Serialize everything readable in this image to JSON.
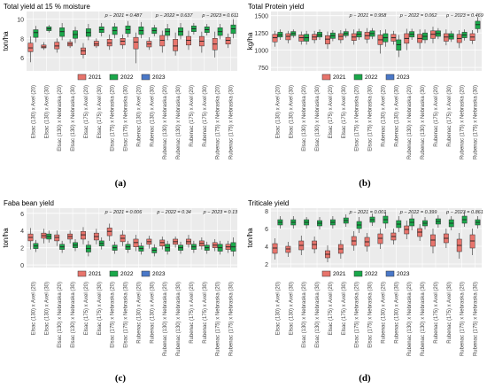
{
  "colors": {
    "2021": "#e8746c",
    "2022": "#1aa84a",
    "2023": "#4a78c8",
    "panel_bg": "#ebebeb",
    "grid": "#ffffff"
  },
  "legend": {
    "years": [
      "2021",
      "2022",
      "2023"
    ]
  },
  "categories": [
    "Elsac (130) x Axel (20)",
    "Elsac (130) x Axel (30)",
    "Elsac (130) x Nebraska (20)",
    "Elsac (130) x Nebraska (30)",
    "Elsac (175) x Axel (20)",
    "Elsac (175) x Axel (30)",
    "Elsac (175) x Nebraska (20)",
    "Elsac (175) x Nebraska (30)",
    "Rubenac (130) x Axel (20)",
    "Rubenac (130) x Axel (30)",
    "Rubenac (130) x Nebraska (20)",
    "Rubenac (130) x Nebraska (30)",
    "Rubenac (175) x Axel (20)",
    "Rubenac (175) x Axel (30)",
    "Rubenac (175) x Nebraska (20)",
    "Rubenac (175) x Nebraska (30)"
  ],
  "chart_data": [
    {
      "type": "box",
      "caption": "(a)",
      "title": "Total yield at 15 % moisture",
      "ylabel": "ton/ha",
      "ylim": [
        4.6,
        10.8
      ],
      "yticks": [
        6,
        8,
        10
      ],
      "pvalues": [
        "p − 2021 = 0.487",
        "p − 2022 = 0.637",
        "p − 2023 = 0.611"
      ],
      "series": [
        {
          "name": "2021",
          "values": [
            [
              5.5,
              6.6,
              7.0,
              7.5,
              8.2
            ],
            [
              6.8,
              7.0,
              7.1,
              7.3,
              7.6
            ],
            [
              6.5,
              6.9,
              7.2,
              7.6,
              8.0
            ],
            [
              7.0,
              7.2,
              7.4,
              7.6,
              7.9
            ],
            [
              5.9,
              6.3,
              6.7,
              7.0,
              7.5
            ],
            [
              7.0,
              7.2,
              7.4,
              7.7,
              8.0
            ],
            [
              6.8,
              7.2,
              7.5,
              7.9,
              8.4
            ],
            [
              6.9,
              7.3,
              7.7,
              8.0,
              8.4
            ],
            [
              5.4,
              6.9,
              7.6,
              8.1,
              8.6
            ],
            [
              6.8,
              7.1,
              7.4,
              7.7,
              8.1
            ],
            [
              6.5,
              7.2,
              7.8,
              8.3,
              8.8
            ],
            [
              6.2,
              6.7,
              7.2,
              7.9,
              8.6
            ],
            [
              6.8,
              7.3,
              7.8,
              8.2,
              8.8
            ],
            [
              6.5,
              7.2,
              7.7,
              8.2,
              8.7
            ],
            [
              6.0,
              6.8,
              7.4,
              8.0,
              8.7
            ],
            [
              7.0,
              7.4,
              7.8,
              8.1,
              8.5
            ]
          ]
        },
        {
          "name": "2022",
          "values": [
            [
              7.6,
              8.1,
              8.6,
              8.9,
              9.3
            ],
            [
              8.6,
              8.8,
              9.0,
              9.2,
              9.4
            ],
            [
              7.8,
              8.2,
              8.7,
              9.1,
              9.6
            ],
            [
              7.5,
              8.0,
              8.4,
              8.8,
              9.2
            ],
            [
              7.8,
              8.2,
              8.6,
              9.0,
              9.5
            ],
            [
              8.2,
              8.6,
              8.9,
              9.2,
              9.6
            ],
            [
              8.0,
              8.4,
              8.8,
              9.2,
              9.6
            ],
            [
              8.1,
              8.5,
              8.9,
              9.3,
              9.8
            ],
            [
              8.0,
              8.4,
              8.8,
              9.2,
              9.7
            ],
            [
              8.2,
              8.5,
              8.8,
              9.1,
              9.4
            ],
            [
              7.8,
              8.3,
              8.7,
              9.0,
              9.5
            ],
            [
              7.9,
              8.3,
              8.7,
              9.1,
              9.6
            ],
            [
              8.4,
              8.7,
              9.0,
              9.3,
              9.6
            ],
            [
              8.3,
              8.6,
              8.9,
              9.2,
              9.5
            ],
            [
              7.9,
              8.3,
              8.7,
              9.1,
              9.5
            ],
            [
              8.0,
              8.5,
              9.0,
              9.4,
              10.0
            ]
          ]
        }
      ]
    },
    {
      "type": "box",
      "caption": "(b)",
      "title": "Total Protein yield",
      "ylabel": "kg/ha",
      "ylim": [
        700,
        1560
      ],
      "yticks": [
        750,
        1000,
        1250,
        1500
      ],
      "pvalues": [
        "p − 2021 = 0.958",
        "p − 2022 = 0.062",
        "p − 2023 = 0.469"
      ],
      "series": [
        {
          "name": "2021",
          "values": [
            [
              1050,
              1120,
              1180,
              1230,
              1280
            ],
            [
              1100,
              1150,
              1200,
              1240,
              1280
            ],
            [
              1080,
              1130,
              1180,
              1220,
              1270
            ],
            [
              1100,
              1150,
              1190,
              1230,
              1280
            ],
            [
              1020,
              1090,
              1160,
              1210,
              1270
            ],
            [
              1100,
              1150,
              1200,
              1240,
              1290
            ],
            [
              1080,
              1140,
              1190,
              1240,
              1300
            ],
            [
              1100,
              1160,
              1210,
              1260,
              1320
            ],
            [
              950,
              1080,
              1150,
              1220,
              1290
            ],
            [
              1080,
              1130,
              1180,
              1230,
              1280
            ],
            [
              1000,
              1100,
              1170,
              1240,
              1310
            ],
            [
              1020,
              1110,
              1170,
              1230,
              1300
            ],
            [
              1100,
              1170,
              1230,
              1280,
              1340
            ],
            [
              1070,
              1130,
              1190,
              1240,
              1300
            ],
            [
              1030,
              1110,
              1170,
              1230,
              1290
            ],
            [
              1090,
              1140,
              1190,
              1240,
              1290
            ]
          ]
        },
        {
          "name": "2022",
          "values": [
            [
              1150,
              1190,
              1220,
              1260,
              1300
            ],
            [
              1180,
              1210,
              1240,
              1270,
              1300
            ],
            [
              1080,
              1130,
              1180,
              1230,
              1280
            ],
            [
              1150,
              1190,
              1220,
              1260,
              1300
            ],
            [
              1130,
              1170,
              1210,
              1250,
              1290
            ],
            [
              1180,
              1210,
              1240,
              1270,
              1310
            ],
            [
              1150,
              1190,
              1230,
              1270,
              1310
            ],
            [
              1160,
              1200,
              1240,
              1280,
              1320
            ],
            [
              1050,
              1120,
              1180,
              1240,
              1300
            ],
            [
              900,
              1000,
              1080,
              1150,
              1220
            ],
            [
              1150,
              1190,
              1230,
              1270,
              1310
            ],
            [
              1100,
              1150,
              1200,
              1250,
              1300
            ],
            [
              1160,
              1200,
              1240,
              1280,
              1320
            ],
            [
              1120,
              1160,
              1200,
              1240,
              1280
            ],
            [
              1140,
              1180,
              1220,
              1260,
              1300
            ],
            [
              1250,
              1310,
              1370,
              1420,
              1480
            ]
          ]
        }
      ]
    },
    {
      "type": "box",
      "caption": "(c)",
      "title": "Faba bean yield",
      "ylabel": "ton/ha",
      "ylim": [
        -0.3,
        6.6
      ],
      "yticks": [
        0,
        2,
        4,
        6
      ],
      "pvalues": [
        "p − 2021 = 0.006",
        "p − 2022 = 0.34",
        "p − 2023 = 0.13"
      ],
      "series": [
        {
          "name": "2021",
          "values": [
            [
              1.8,
              2.8,
              3.2,
              3.6,
              4.3
            ],
            [
              2.5,
              3.1,
              3.4,
              3.7,
              4.2
            ],
            [
              2.2,
              2.8,
              3.2,
              3.5,
              4.0
            ],
            [
              2.5,
              3.0,
              3.3,
              3.6,
              4.0
            ],
            [
              2.4,
              3.0,
              3.5,
              3.9,
              4.4
            ],
            [
              2.4,
              2.9,
              3.3,
              3.7,
              4.2
            ],
            [
              2.8,
              3.4,
              3.9,
              4.3,
              4.8
            ],
            [
              2.2,
              2.7,
              3.1,
              3.5,
              4.0
            ],
            [
              1.6,
              2.1,
              2.6,
              3.0,
              3.5
            ],
            [
              1.9,
              2.4,
              2.7,
              3.0,
              3.4
            ],
            [
              1.8,
              2.2,
              2.6,
              2.9,
              3.3
            ],
            [
              2.0,
              2.4,
              2.7,
              3.0,
              3.3
            ],
            [
              2.0,
              2.4,
              2.7,
              3.0,
              3.5
            ],
            [
              1.8,
              2.2,
              2.5,
              2.8,
              3.2
            ],
            [
              1.6,
              2.0,
              2.3,
              2.6,
              3.0
            ],
            [
              1.4,
              1.8,
              2.1,
              2.4,
              2.8
            ]
          ]
        },
        {
          "name": "2022",
          "values": [
            [
              1.5,
              1.9,
              2.2,
              2.5,
              2.9
            ],
            [
              2.6,
              3.0,
              3.3,
              3.6,
              4.0
            ],
            [
              1.4,
              1.8,
              2.1,
              2.4,
              2.8
            ],
            [
              1.6,
              2.0,
              2.3,
              2.6,
              3.0
            ],
            [
              1.0,
              1.5,
              1.9,
              2.3,
              2.8
            ],
            [
              1.8,
              2.2,
              2.5,
              2.8,
              3.2
            ],
            [
              1.3,
              1.7,
              2.0,
              2.3,
              2.7
            ],
            [
              1.4,
              1.8,
              2.1,
              2.4,
              2.8
            ],
            [
              1.2,
              1.6,
              1.9,
              2.2,
              2.6
            ],
            [
              1.0,
              1.4,
              1.7,
              2.0,
              2.4
            ],
            [
              1.2,
              1.6,
              2.0,
              2.4,
              2.8
            ],
            [
              1.3,
              1.7,
              2.0,
              2.3,
              2.7
            ],
            [
              1.4,
              1.8,
              2.1,
              2.4,
              2.8
            ],
            [
              1.3,
              1.7,
              2.0,
              2.3,
              2.7
            ],
            [
              1.2,
              1.6,
              2.0,
              2.4,
              2.8
            ],
            [
              1.0,
              1.6,
              2.1,
              2.6,
              3.2
            ]
          ]
        }
      ]
    },
    {
      "type": "box",
      "caption": "(d)",
      "title": "Triticale yield",
      "ylabel": "ton/ha",
      "ylim": [
        1.6,
        8.3
      ],
      "yticks": [
        2,
        4,
        6,
        8
      ],
      "pvalues": [
        "p − 2021 = 0.001",
        "p − 2022 = 0.399",
        "p − 2023 = 0.861"
      ],
      "series": [
        {
          "name": "2021",
          "values": [
            [
              2.5,
              3.2,
              3.8,
              4.3,
              4.9
            ],
            [
              2.8,
              3.3,
              3.7,
              4.0,
              4.5
            ],
            [
              3.0,
              3.6,
              4.1,
              4.6,
              5.2
            ],
            [
              3.2,
              3.7,
              4.2,
              4.6,
              5.1
            ],
            [
              2.2,
              2.7,
              3.1,
              3.5,
              4.1
            ],
            [
              2.6,
              3.2,
              3.7,
              4.2,
              4.7
            ],
            [
              3.5,
              4.1,
              4.6,
              5.1,
              5.7
            ],
            [
              3.4,
              4.0,
              4.5,
              5.0,
              5.5
            ],
            [
              3.7,
              4.3,
              4.9,
              5.4,
              6.0
            ],
            [
              4.2,
              4.7,
              5.1,
              5.5,
              6.0
            ],
            [
              4.8,
              5.4,
              5.9,
              6.3,
              6.9
            ],
            [
              4.6,
              5.1,
              5.6,
              6.0,
              6.5
            ],
            [
              3.2,
              4.0,
              4.7,
              5.3,
              6.0
            ],
            [
              3.8,
              4.4,
              4.9,
              5.4,
              6.0
            ],
            [
              2.6,
              3.4,
              4.1,
              4.8,
              5.5
            ],
            [
              3.0,
              3.8,
              4.6,
              5.3,
              6.0
            ]
          ]
        },
        {
          "name": "2022",
          "values": [
            [
              6.0,
              6.4,
              6.7,
              7.0,
              7.4
            ],
            [
              6.0,
              6.4,
              6.7,
              7.0,
              7.4
            ],
            [
              6.0,
              6.4,
              6.7,
              7.0,
              7.3
            ],
            [
              5.9,
              6.3,
              6.6,
              6.9,
              7.3
            ],
            [
              6.0,
              6.4,
              6.7,
              7.0,
              7.4
            ],
            [
              6.2,
              6.6,
              6.9,
              7.2,
              7.6
            ],
            [
              5.5,
              6.0,
              6.4,
              6.8,
              7.3
            ],
            [
              6.3,
              6.7,
              7.0,
              7.3,
              7.7
            ],
            [
              6.0,
              6.6,
              7.0,
              7.4,
              7.9
            ],
            [
              5.6,
              6.1,
              6.5,
              6.9,
              7.4
            ],
            [
              5.8,
              6.3,
              6.7,
              7.1,
              7.6
            ],
            [
              5.9,
              6.3,
              6.6,
              6.9,
              7.3
            ],
            [
              6.1,
              6.5,
              6.8,
              7.1,
              7.5
            ],
            [
              5.8,
              6.2,
              6.6,
              7.0,
              7.4
            ],
            [
              6.2,
              6.6,
              7.0,
              7.4,
              7.9
            ],
            [
              6.0,
              6.4,
              6.7,
              7.0,
              7.4
            ]
          ]
        }
      ]
    }
  ]
}
